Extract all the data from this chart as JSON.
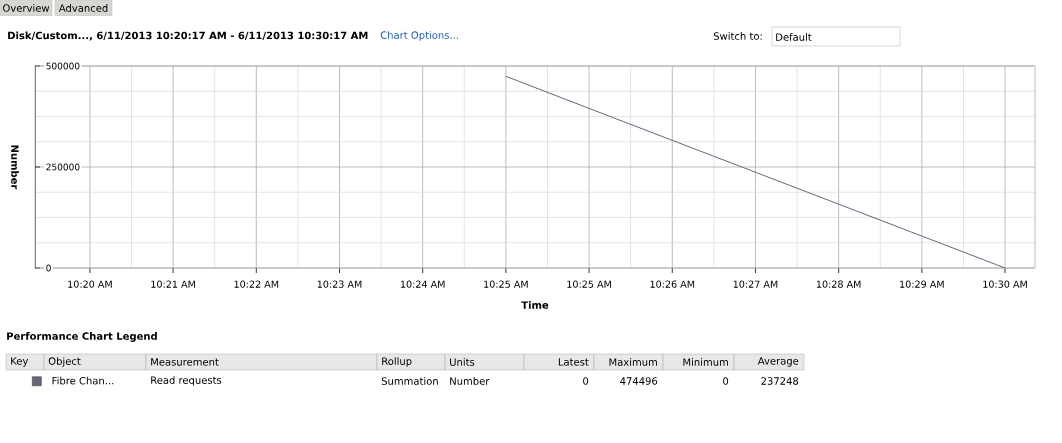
{
  "chart_data": {
    "type": "line",
    "title": "Disk/Custom..., 6/11/2013 10:20:17 AM - 6/11/2013 10:30:17 AM",
    "xlabel": "Time",
    "ylabel": "Number",
    "legend_title": "Performance Chart Legend",
    "categories": [
      "10:20 AM",
      "10:21 AM",
      "10:22 AM",
      "10:23 AM",
      "10:24 AM",
      "10:25 AM",
      "10:25 AM",
      "10:26 AM",
      "10:27 AM",
      "10:28 AM",
      "10:29 AM",
      "10:30 AM"
    ],
    "series": [
      {
        "name": "Fibre Chan...",
        "color": "#66667a",
        "values": [
          null,
          null,
          null,
          null,
          null,
          474496,
          395000,
          316000,
          237000,
          158000,
          79000,
          0
        ]
      }
    ],
    "ylim": [
      0,
      500000
    ],
    "yticks": [
      0,
      250000,
      500000
    ],
    "grid": true,
    "legend": "bottom",
    "annotations": [
      "Overview",
      "Advanced",
      "Chart Options...",
      "Switch to:",
      "Default",
      "Key",
      "Object",
      "Measurement",
      "Rollup",
      "Units",
      "Latest",
      "Maximum",
      "Minimum",
      "Average",
      "Read requests",
      "Summation",
      "Number",
      "0",
      "474496",
      "0",
      "237248"
    ]
  }
}
